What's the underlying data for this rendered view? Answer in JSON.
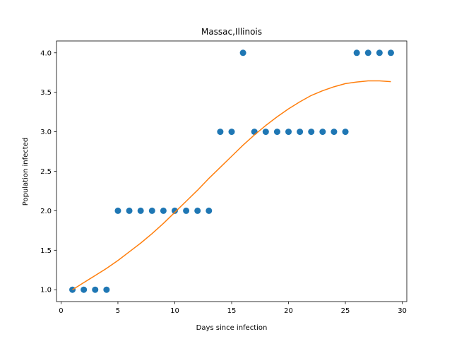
{
  "chart_data": {
    "type": "scatter",
    "title": "Massac,Illinois",
    "xlabel": "Days since infection",
    "ylabel": "Population infected",
    "xlim": [
      -0.4,
      30.4
    ],
    "ylim": [
      0.85,
      4.15
    ],
    "xticks": [
      0,
      5,
      10,
      15,
      20,
      25,
      30
    ],
    "xtick_labels": [
      "0",
      "5",
      "10",
      "15",
      "20",
      "25",
      "30"
    ],
    "yticks": [
      1.0,
      1.5,
      2.0,
      2.5,
      3.0,
      3.5,
      4.0
    ],
    "ytick_labels": [
      "1.0",
      "1.5",
      "2.0",
      "2.5",
      "3.0",
      "3.5",
      "4.0"
    ],
    "grid": false,
    "series": [
      {
        "kind": "scatter",
        "color": "#1f77b4",
        "x": [
          1,
          2,
          3,
          4,
          5,
          6,
          7,
          8,
          9,
          10,
          11,
          12,
          13,
          14,
          15,
          16,
          17,
          18,
          19,
          20,
          21,
          22,
          23,
          24,
          25,
          26,
          27,
          28,
          29
        ],
        "y": [
          1,
          1,
          1,
          1,
          2,
          2,
          2,
          2,
          2,
          2,
          2,
          2,
          2,
          3,
          3,
          4,
          3,
          3,
          3,
          3,
          3,
          3,
          3,
          3,
          3,
          4,
          4,
          4,
          4
        ]
      },
      {
        "kind": "line",
        "color": "#ff7f0e",
        "x": [
          1,
          2,
          3,
          4,
          5,
          6,
          7,
          8,
          9,
          10,
          11,
          12,
          13,
          14,
          15,
          16,
          17,
          18,
          19,
          20,
          21,
          22,
          23,
          24,
          25,
          26,
          27,
          28,
          29
        ],
        "y": [
          1.0,
          1.09,
          1.18,
          1.27,
          1.37,
          1.48,
          1.59,
          1.71,
          1.84,
          1.98,
          2.12,
          2.26,
          2.41,
          2.55,
          2.69,
          2.83,
          2.96,
          3.08,
          3.19,
          3.29,
          3.38,
          3.46,
          3.52,
          3.57,
          3.61,
          3.63,
          3.645,
          3.645,
          3.635
        ]
      }
    ]
  }
}
